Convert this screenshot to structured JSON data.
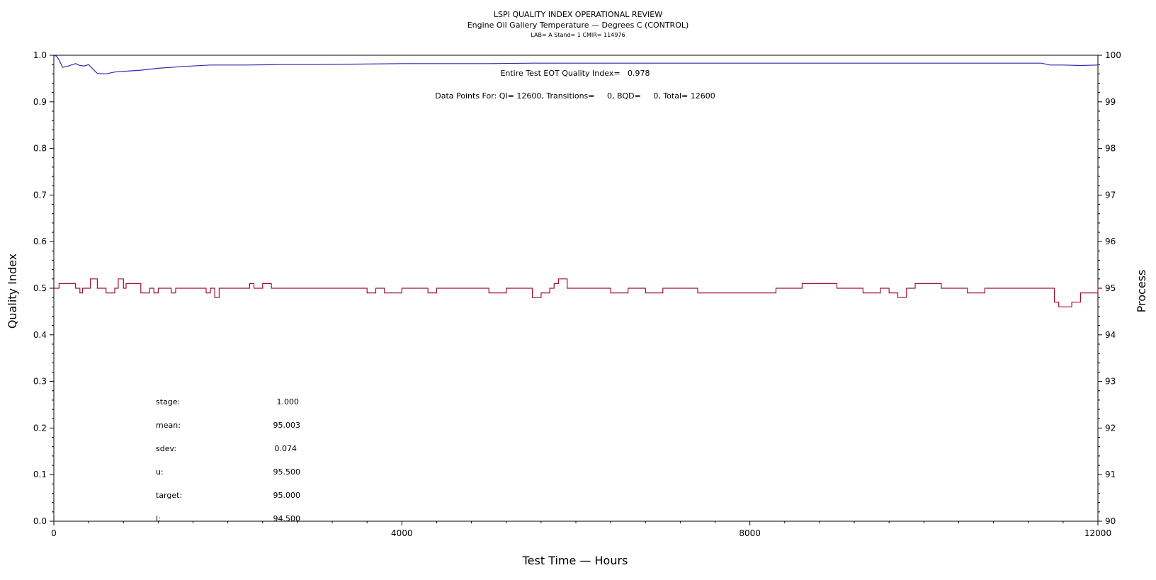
{
  "header": {
    "title": "LSPI QUALITY INDEX OPERATIONAL REVIEW",
    "subtitle": "Engine Oil Gallery Temperature — Degrees C (CONTROL)",
    "info": "LAB= A Stand= 1 CMIR= 114976"
  },
  "annotations": {
    "qi_line": "Entire Test EOT Quality Index=   0.978",
    "points_line": "Data Points For: QI= 12600, Transitions=     0, BQD=     0, Total= 12600"
  },
  "stats": [
    {
      "label": "stage:",
      "value": "1.000"
    },
    {
      "label": "mean:",
      "value": "95.003"
    },
    {
      "label": "sdev:",
      "value": "0.074"
    },
    {
      "label": "u:",
      "value": "95.500"
    },
    {
      "label": "target:",
      "value": "95.000"
    },
    {
      "label": "l:",
      "value": "94.500"
    }
  ],
  "chart_data": {
    "type": "line",
    "title": "LSPI QUALITY INDEX OPERATIONAL REVIEW",
    "xlabel": "Test Time — Hours",
    "ylabel": "Quality Index",
    "y2label": "Process",
    "xlim": [
      0,
      12000
    ],
    "ylim": [
      0,
      1
    ],
    "y2lim": [
      90,
      100
    ],
    "xticks": [
      0,
      4000,
      8000,
      12000
    ],
    "xtick_labels": [
      "0",
      "4000",
      "8000",
      "12000"
    ],
    "yticks": [
      0,
      0.1,
      0.2,
      0.3,
      0.4,
      0.5,
      0.6,
      0.7,
      0.8,
      0.9,
      1.0
    ],
    "ytick_labels": [
      "0.0",
      "0.1",
      "0.2",
      "0.3",
      "0.4",
      "0.5",
      "0.6",
      "0.7",
      "0.8",
      "0.9",
      "1.0"
    ],
    "y2ticks": [
      90,
      91,
      92,
      93,
      94,
      95,
      96,
      97,
      98,
      99,
      100
    ],
    "y2tick_labels": [
      "90",
      "91",
      "92",
      "93",
      "94",
      "95",
      "96",
      "97",
      "98",
      "99",
      "100"
    ],
    "grid": false,
    "series": [
      {
        "axis": "left",
        "color": "#2b2bb5",
        "x": [
          0,
          30,
          60,
          100,
          150,
          200,
          250,
          300,
          350,
          400,
          450,
          500,
          600,
          700,
          850,
          1000,
          1200,
          1500,
          1800,
          2200,
          2600,
          3000,
          3500,
          4000,
          4500,
          5000,
          5500,
          6000,
          6500,
          7000,
          7500,
          8000,
          8500,
          9000,
          9500,
          10000,
          10500,
          11000,
          11350,
          11450,
          11600,
          11800,
          12000
        ],
        "y": [
          1.0,
          0.998,
          0.99,
          0.974,
          0.976,
          0.979,
          0.982,
          0.978,
          0.977,
          0.98,
          0.97,
          0.961,
          0.96,
          0.964,
          0.966,
          0.968,
          0.972,
          0.976,
          0.979,
          0.979,
          0.98,
          0.98,
          0.981,
          0.982,
          0.982,
          0.982,
          0.983,
          0.983,
          0.983,
          0.983,
          0.983,
          0.983,
          0.983,
          0.983,
          0.983,
          0.983,
          0.983,
          0.983,
          0.983,
          0.979,
          0.979,
          0.978,
          0.979
        ]
      },
      {
        "axis": "right",
        "color": "#a0102a",
        "step": true,
        "x": [
          0,
          60,
          250,
          300,
          330,
          420,
          500,
          600,
          700,
          740,
          800,
          830,
          1000,
          1100,
          1150,
          1200,
          1350,
          1400,
          1750,
          1800,
          1850,
          1900,
          2100,
          2250,
          2300,
          2400,
          2500,
          3200,
          3400,
          3600,
          3700,
          3800,
          4000,
          4200,
          4300,
          4400,
          5000,
          5200,
          5300,
          5400,
          5500,
          5600,
          5700,
          5750,
          5800,
          5900,
          6400,
          6600,
          6800,
          7000,
          7300,
          7400,
          8300,
          8500,
          8600,
          9000,
          9300,
          9400,
          9500,
          9600,
          9700,
          9800,
          9900,
          10100,
          10200,
          10500,
          10700,
          11400,
          11500,
          11550,
          11600,
          11700,
          11800,
          12000
        ],
        "y": [
          95.0,
          95.1,
          95.0,
          94.9,
          95.0,
          95.2,
          95.0,
          94.9,
          95.0,
          95.2,
          95.0,
          95.1,
          94.9,
          95.0,
          94.9,
          95.0,
          94.9,
          95.0,
          94.9,
          95.0,
          94.8,
          95.0,
          95.0,
          95.1,
          95.0,
          95.1,
          95.0,
          95.0,
          95.0,
          94.9,
          95.0,
          94.9,
          95.0,
          95.0,
          94.9,
          95.0,
          94.9,
          95.0,
          95.0,
          95.0,
          94.8,
          94.9,
          95.0,
          95.1,
          95.2,
          95.0,
          94.9,
          95.0,
          94.9,
          95.0,
          95.0,
          94.9,
          95.0,
          95.0,
          95.1,
          95.0,
          94.9,
          94.9,
          95.0,
          94.9,
          94.8,
          95.0,
          95.1,
          95.1,
          95.0,
          94.9,
          95.0,
          95.0,
          94.7,
          94.6,
          94.6,
          94.7,
          94.9,
          95.1
        ]
      }
    ]
  }
}
